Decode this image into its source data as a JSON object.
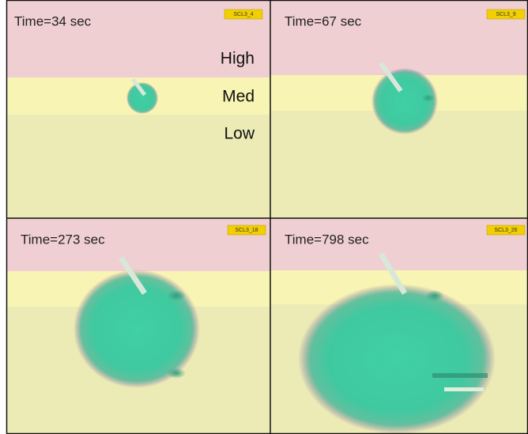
{
  "panels": [
    {
      "time": "Time=34 sec",
      "tag": "SCL3_4"
    },
    {
      "time": "Time=67 sec",
      "tag": "SCL3_9"
    },
    {
      "time": "Time=273 sec",
      "tag": "SCL3_18"
    },
    {
      "time": "Time=798 sec",
      "tag": "SCL3_26"
    }
  ],
  "zones": [
    "High",
    "Med",
    "Low"
  ]
}
